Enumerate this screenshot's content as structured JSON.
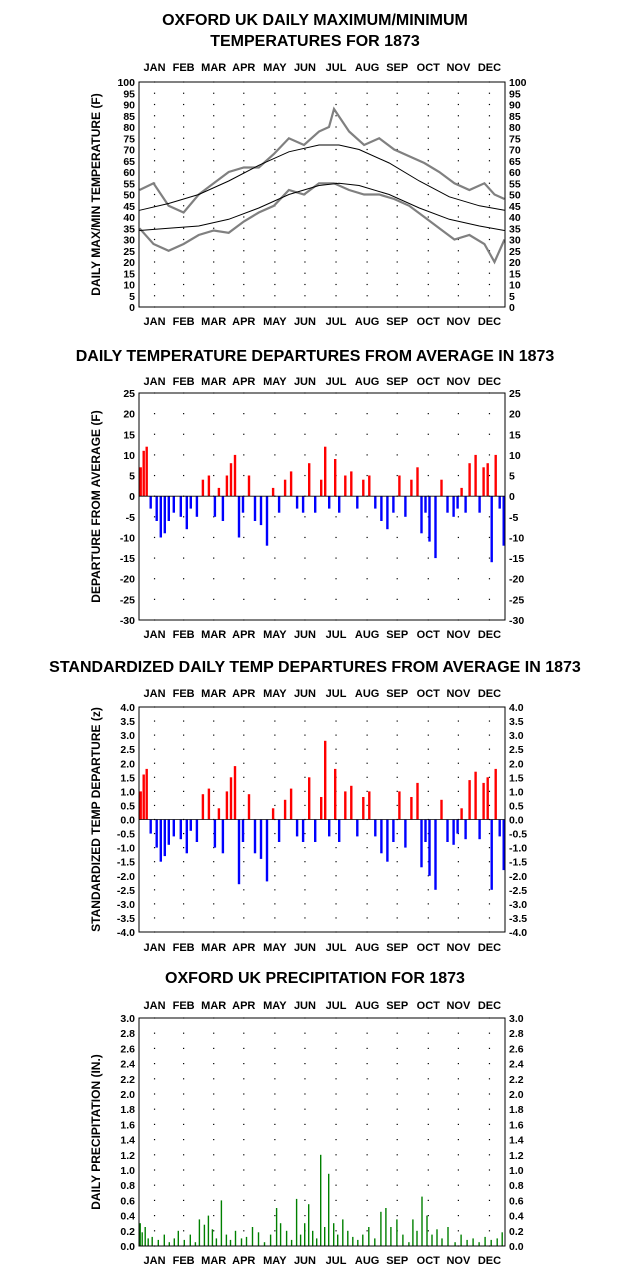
{
  "months": [
    "JAN",
    "FEB",
    "MAR",
    "APR",
    "MAY",
    "JUN",
    "JUL",
    "AUG",
    "SEP",
    "OCT",
    "NOV",
    "DEC"
  ],
  "colors": {
    "max_min_series": "#808080",
    "normals": "#000000",
    "above": "#ff0000",
    "below": "#0000ff",
    "precip": "#008000"
  },
  "chart_data": [
    {
      "type": "line",
      "title": [
        "OXFORD UK DAILY MAXIMUM/MINIMUM",
        "TEMPERATURES FOR 1873"
      ],
      "ylabel": "DAILY MAX/MIN TEMPERATURE  (F)",
      "ylim": [
        0,
        100
      ],
      "yticks": [
        0,
        5,
        10,
        15,
        20,
        25,
        30,
        35,
        40,
        45,
        50,
        55,
        60,
        65,
        70,
        75,
        80,
        85,
        90,
        95,
        100
      ],
      "ytick_labels": [
        "0",
        "5",
        "10",
        "15",
        "20",
        "25",
        "30",
        "35",
        "40",
        "45",
        "50",
        "55",
        "60",
        "65",
        "70",
        "75",
        "80",
        "85",
        "90",
        "95",
        "100"
      ],
      "x_unit": "day of year",
      "normal_max": {
        "x": [
          1,
          30,
          60,
          90,
          120,
          150,
          180,
          200,
          220,
          250,
          280,
          310,
          340,
          365
        ],
        "values": [
          43,
          46,
          50,
          56,
          63,
          69,
          72,
          72,
          70,
          64,
          56,
          49,
          45,
          43
        ]
      },
      "normal_min": {
        "x": [
          1,
          30,
          60,
          90,
          120,
          150,
          180,
          200,
          220,
          250,
          280,
          310,
          340,
          365
        ],
        "values": [
          34,
          35,
          36,
          39,
          44,
          50,
          54,
          55,
          54,
          50,
          44,
          39,
          36,
          34
        ]
      },
      "daily_max": {
        "x": [
          1,
          15,
          30,
          45,
          60,
          75,
          90,
          105,
          120,
          135,
          150,
          165,
          180,
          190,
          195,
          210,
          225,
          240,
          255,
          270,
          285,
          300,
          315,
          330,
          345,
          355,
          365
        ],
        "values": [
          52,
          55,
          45,
          42,
          50,
          55,
          60,
          62,
          62,
          68,
          75,
          72,
          78,
          80,
          88,
          78,
          72,
          75,
          70,
          67,
          64,
          60,
          55,
          52,
          55,
          50,
          48
        ]
      },
      "daily_min": {
        "x": [
          1,
          15,
          30,
          45,
          60,
          75,
          90,
          105,
          120,
          135,
          150,
          165,
          180,
          195,
          210,
          225,
          240,
          255,
          270,
          285,
          300,
          315,
          330,
          345,
          355,
          365
        ],
        "values": [
          35,
          28,
          25,
          28,
          32,
          34,
          33,
          38,
          42,
          45,
          52,
          50,
          55,
          55,
          52,
          50,
          50,
          48,
          45,
          40,
          35,
          30,
          32,
          28,
          20,
          30
        ]
      }
    },
    {
      "type": "bar",
      "title": "DAILY TEMPERATURE DEPARTURES FROM AVERAGE IN 1873",
      "ylabel": "DEPARTURE FROM AVERAGE (F)",
      "ylim": [
        -30,
        25
      ],
      "yticks": [
        -30,
        -25,
        -20,
        -15,
        -10,
        -5,
        0,
        5,
        10,
        15,
        20,
        25
      ],
      "ytick_labels": [
        "-30",
        "-25",
        "-20",
        "-15",
        "-10",
        "-5",
        "0",
        "5",
        "10",
        "15",
        "20",
        "25"
      ],
      "x_unit": "day of year",
      "x": [
        2,
        5,
        8,
        12,
        18,
        22,
        26,
        30,
        35,
        42,
        48,
        52,
        58,
        64,
        70,
        76,
        80,
        84,
        88,
        92,
        96,
        100,
        104,
        110,
        116,
        122,
        128,
        134,
        140,
        146,
        152,
        158,
        164,
        170,
        176,
        182,
        186,
        190,
        196,
        200,
        206,
        212,
        218,
        224,
        230,
        236,
        242,
        248,
        254,
        260,
        266,
        272,
        278,
        282,
        286,
        290,
        296,
        302,
        308,
        314,
        318,
        322,
        326,
        330,
        336,
        340,
        344,
        348,
        352,
        356,
        360,
        364
      ],
      "values": [
        7,
        11,
        12,
        -3,
        -6,
        -10,
        -9,
        -6,
        -4,
        -5,
        -8,
        -3,
        -5,
        4,
        5,
        -5,
        2,
        -6,
        5,
        8,
        10,
        -10,
        -4,
        5,
        -6,
        -7,
        -12,
        2,
        -4,
        4,
        6,
        -3,
        -4,
        8,
        -4,
        4,
        12,
        -3,
        9,
        -4,
        5,
        6,
        -3,
        4,
        5,
        -3,
        -6,
        -8,
        -4,
        5,
        -5,
        4,
        7,
        -9,
        -4,
        -11,
        -15,
        4,
        -4,
        -5,
        -3,
        2,
        -4,
        8,
        10,
        -4,
        7,
        8,
        -16,
        10,
        -3,
        -12
      ]
    },
    {
      "type": "bar",
      "title": "STANDARDIZED DAILY TEMP DEPARTURES FROM AVERAGE IN 1873",
      "ylabel": "STANDARDIZED TEMP DEPARTURE  (z)",
      "ylim": [
        -4.0,
        4.0
      ],
      "yticks": [
        -4.0,
        -3.5,
        -3.0,
        -2.5,
        -2.0,
        -1.5,
        -1.0,
        -0.5,
        0.0,
        0.5,
        1.0,
        1.5,
        2.0,
        2.5,
        3.0,
        3.5,
        4.0
      ],
      "ytick_labels": [
        "-4.0",
        "-3.5",
        "-3.0",
        "-2.5",
        "-2.0",
        "-1.5",
        "-1.0",
        "-0.5",
        "0.0",
        "0.5",
        "1.0",
        "1.5",
        "2.0",
        "2.5",
        "3.0",
        "3.5",
        "4.0"
      ],
      "x_unit": "day of year",
      "x": [
        2,
        5,
        8,
        12,
        18,
        22,
        26,
        30,
        35,
        42,
        48,
        52,
        58,
        64,
        70,
        76,
        80,
        84,
        88,
        92,
        96,
        100,
        104,
        110,
        116,
        122,
        128,
        134,
        140,
        146,
        152,
        158,
        164,
        170,
        176,
        182,
        186,
        190,
        196,
        200,
        206,
        212,
        218,
        224,
        230,
        236,
        242,
        248,
        254,
        260,
        266,
        272,
        278,
        282,
        286,
        290,
        296,
        302,
        308,
        314,
        318,
        322,
        326,
        330,
        336,
        340,
        344,
        348,
        352,
        356,
        360,
        364
      ],
      "values": [
        1.0,
        1.6,
        1.8,
        -0.5,
        -1.0,
        -1.5,
        -1.3,
        -0.9,
        -0.6,
        -0.7,
        -1.2,
        -0.4,
        -0.8,
        0.9,
        1.1,
        -1.0,
        0.4,
        -1.2,
        1.0,
        1.5,
        1.9,
        -2.3,
        -0.8,
        0.9,
        -1.2,
        -1.4,
        -2.2,
        0.4,
        -0.8,
        0.7,
        1.1,
        -0.6,
        -0.8,
        1.5,
        -0.8,
        0.8,
        2.8,
        -0.6,
        1.8,
        -0.8,
        1.0,
        1.2,
        -0.6,
        0.8,
        1.0,
        -0.6,
        -1.2,
        -1.5,
        -0.8,
        1.0,
        -1.0,
        0.8,
        1.3,
        -1.7,
        -0.8,
        -2.0,
        -2.5,
        0.7,
        -0.8,
        -0.9,
        -0.5,
        0.4,
        -0.7,
        1.4,
        1.7,
        -0.7,
        1.3,
        1.5,
        -2.5,
        1.8,
        -0.6,
        -1.8
      ]
    },
    {
      "type": "bar",
      "title": "OXFORD UK PRECIPITATION FOR 1873",
      "ylabel": "DAILY PRECIPITATION (IN.)",
      "ylim": [
        0.0,
        3.0
      ],
      "yticks": [
        0.0,
        0.2,
        0.4,
        0.6,
        0.8,
        1.0,
        1.2,
        1.4,
        1.6,
        1.8,
        2.0,
        2.2,
        2.4,
        2.6,
        2.8,
        3.0
      ],
      "ytick_labels": [
        "0.0",
        "0.2",
        "0.4",
        "0.6",
        "0.8",
        "1.0",
        "1.2",
        "1.4",
        "1.6",
        "1.8",
        "2.0",
        "2.2",
        "2.4",
        "2.6",
        "2.8",
        "3.0"
      ],
      "x_unit": "day of year",
      "x": [
        2,
        4,
        7,
        10,
        14,
        20,
        26,
        31,
        36,
        40,
        46,
        52,
        57,
        61,
        66,
        70,
        74,
        78,
        83,
        88,
        92,
        97,
        103,
        108,
        114,
        120,
        126,
        132,
        138,
        142,
        148,
        153,
        158,
        162,
        166,
        170,
        174,
        178,
        182,
        186,
        190,
        195,
        199,
        204,
        209,
        214,
        219,
        224,
        230,
        236,
        242,
        247,
        252,
        258,
        264,
        270,
        274,
        278,
        283,
        288,
        293,
        298,
        303,
        309,
        316,
        322,
        328,
        334,
        340,
        346,
        352,
        358,
        363
      ],
      "values": [
        0.3,
        0.18,
        0.25,
        0.1,
        0.12,
        0.08,
        0.15,
        0.05,
        0.1,
        0.2,
        0.08,
        0.15,
        0.05,
        0.35,
        0.28,
        0.4,
        0.22,
        0.1,
        0.6,
        0.15,
        0.08,
        0.2,
        0.1,
        0.12,
        0.25,
        0.18,
        0.05,
        0.15,
        0.5,
        0.3,
        0.2,
        0.08,
        0.62,
        0.15,
        0.3,
        0.55,
        0.2,
        0.1,
        1.2,
        0.25,
        0.95,
        0.3,
        0.15,
        0.35,
        0.2,
        0.12,
        0.08,
        0.15,
        0.25,
        0.1,
        0.45,
        0.5,
        0.25,
        0.35,
        0.15,
        0.05,
        0.35,
        0.2,
        0.65,
        0.4,
        0.15,
        0.22,
        0.1,
        0.25,
        0.05,
        0.15,
        0.08,
        0.1,
        0.05,
        0.12,
        0.08,
        0.1,
        0.18
      ]
    }
  ]
}
